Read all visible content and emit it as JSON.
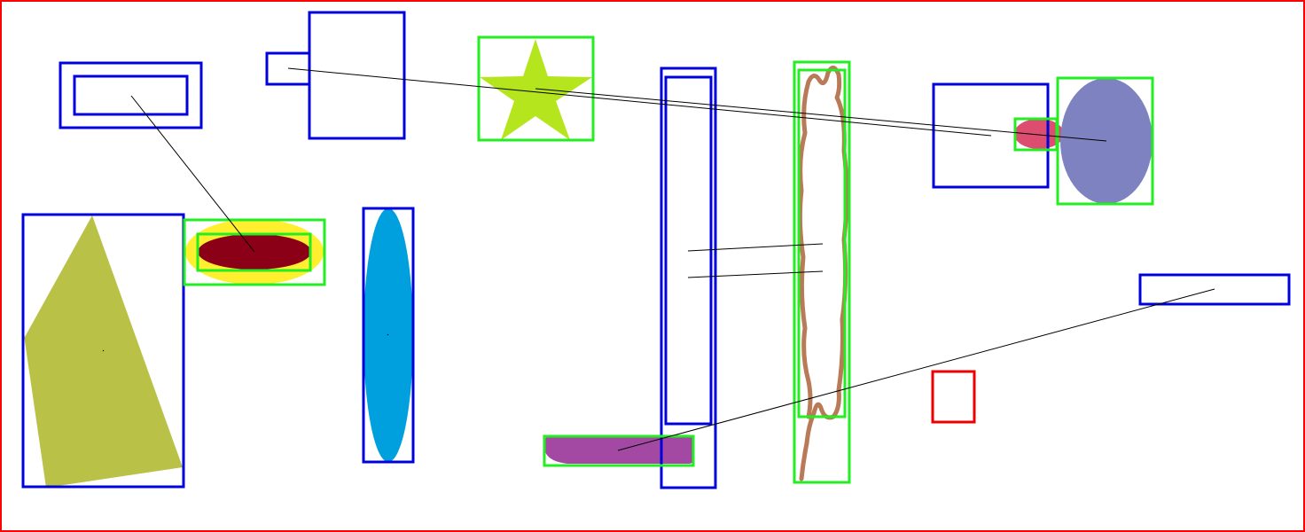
{
  "colors": {
    "frame": "#ff0000",
    "blue_box": "#0000dd",
    "green_box": "#22ee22",
    "red_box": "#ee0000",
    "line": "#000000",
    "olive_polygon": "#b9c247",
    "yellow_ellipse": "#ffef2e",
    "darkred_ellipse": "#8b0016",
    "cyan_ellipse": "#00a0df",
    "star": "#b5e61d",
    "purple_shape": "#a349a4",
    "brown_stroke": "#b97a57",
    "pink_ellipse": "#dc4d70",
    "lavender_ellipse": "#7f82c0"
  },
  "shapes": [
    {
      "name": "olive-quadrilateral",
      "kind": "polygon",
      "color": "olive_polygon"
    },
    {
      "name": "yellow-ellipse",
      "kind": "ellipse",
      "color": "yellow_ellipse"
    },
    {
      "name": "dark-red-ellipse",
      "kind": "ellipse",
      "color": "darkred_ellipse"
    },
    {
      "name": "cyan-ellipse",
      "kind": "ellipse",
      "color": "cyan_ellipse"
    },
    {
      "name": "green-star",
      "kind": "star",
      "color": "star"
    },
    {
      "name": "purple-rounded-bar",
      "kind": "rounded-bar",
      "color": "purple_shape"
    },
    {
      "name": "brown-freehand-loop",
      "kind": "freehand",
      "color": "brown_stroke"
    },
    {
      "name": "pink-ellipse",
      "kind": "ellipse",
      "color": "pink_ellipse"
    },
    {
      "name": "lavender-ellipse",
      "kind": "ellipse",
      "color": "lavender_ellipse"
    }
  ]
}
